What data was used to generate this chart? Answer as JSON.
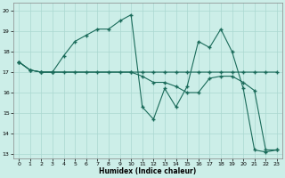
{
  "xlabel": "Humidex (Indice chaleur)",
  "bg_color": "#cceee8",
  "grid_color": "#aad8d0",
  "line_color": "#1a6b5a",
  "xlim": [
    -0.5,
    23.5
  ],
  "ylim": [
    12.8,
    20.4
  ],
  "yticks": [
    13,
    14,
    15,
    16,
    17,
    18,
    19,
    20
  ],
  "xticks": [
    0,
    1,
    2,
    3,
    4,
    5,
    6,
    7,
    8,
    9,
    10,
    11,
    12,
    13,
    14,
    15,
    16,
    17,
    18,
    19,
    20,
    21,
    22,
    23
  ],
  "series1_x": [
    0,
    1,
    2,
    3,
    4,
    5,
    6,
    7,
    8,
    9,
    10,
    11,
    12,
    13,
    14,
    15,
    16,
    17,
    18,
    19,
    20,
    21,
    22,
    23
  ],
  "series1_y": [
    17.5,
    17.1,
    17.0,
    17.0,
    17.0,
    17.0,
    17.0,
    17.0,
    17.0,
    17.0,
    17.0,
    17.0,
    17.0,
    17.0,
    17.0,
    17.0,
    17.0,
    17.0,
    17.0,
    17.0,
    17.0,
    17.0,
    17.0,
    17.0
  ],
  "series2_x": [
    0,
    1,
    2,
    3,
    4,
    5,
    6,
    7,
    8,
    9,
    10,
    11,
    12,
    13,
    14,
    15,
    16,
    17,
    18,
    19,
    20,
    21,
    22,
    23
  ],
  "series2_y": [
    17.5,
    17.1,
    17.0,
    17.0,
    17.8,
    18.5,
    18.8,
    19.1,
    19.1,
    19.5,
    19.8,
    15.3,
    14.7,
    16.2,
    15.3,
    16.3,
    18.5,
    18.2,
    19.1,
    18.0,
    16.2,
    13.2,
    13.1,
    13.2
  ],
  "series3_x": [
    0,
    1,
    2,
    3,
    10,
    11,
    12,
    13,
    14,
    15,
    16,
    17,
    18,
    19,
    20,
    21,
    22,
    23
  ],
  "series3_y": [
    17.5,
    17.1,
    17.0,
    17.0,
    17.0,
    16.8,
    16.5,
    16.5,
    16.3,
    16.0,
    16.0,
    16.7,
    16.8,
    16.8,
    16.5,
    16.1,
    13.2,
    13.2
  ]
}
